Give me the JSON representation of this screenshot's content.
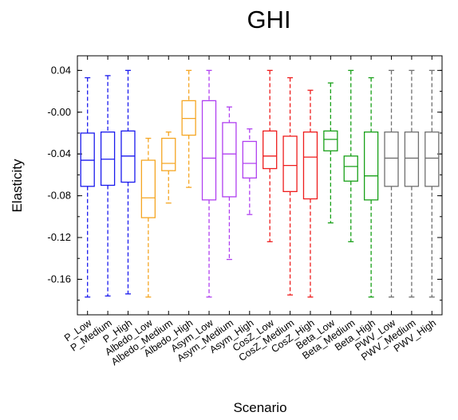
{
  "chart_data": {
    "type": "box",
    "title": "GHI",
    "xlabel": "Scenario",
    "ylabel": "Elasticity",
    "ylim": [
      -0.194,
      0.054
    ],
    "yticks": [
      0.04,
      0.0,
      -0.04,
      -0.08,
      -0.12,
      -0.16
    ],
    "ytick_labels": [
      "0.04",
      "-0.00",
      "-0.04",
      "-0.08",
      "-0.12",
      "-0.16"
    ],
    "grid": false,
    "categories": [
      "P_Low",
      "P_Medium",
      "P_High",
      "Albedo_Low",
      "Albedo_Medium",
      "Albedo_High",
      "Asym_Low",
      "Asym_Medium",
      "Asym_High",
      "CosZ_Low",
      "CosZ_Medium",
      "CosZ_High",
      "Beta_Low",
      "Beta_Medium",
      "Beta_High",
      "PWV_Low",
      "PWV_Medium",
      "PWV_High"
    ],
    "colors": [
      "#1a1aee",
      "#1a1aee",
      "#1a1aee",
      "#f5a623",
      "#f5a623",
      "#f5a623",
      "#b040f0",
      "#b040f0",
      "#b040f0",
      "#ee1c1c",
      "#ee1c1c",
      "#ee1c1c",
      "#18a018",
      "#18a018",
      "#18a018",
      "#707070",
      "#707070",
      "#707070"
    ],
    "boxes": [
      {
        "min": -0.177,
        "q1": -0.071,
        "median": -0.046,
        "q3": -0.02,
        "max": 0.033
      },
      {
        "min": -0.176,
        "q1": -0.07,
        "median": -0.045,
        "q3": -0.019,
        "max": 0.035
      },
      {
        "min": -0.174,
        "q1": -0.067,
        "median": -0.042,
        "q3": -0.018,
        "max": 0.04
      },
      {
        "min": -0.177,
        "q1": -0.101,
        "median": -0.082,
        "q3": -0.046,
        "max": -0.025
      },
      {
        "min": -0.087,
        "q1": -0.056,
        "median": -0.049,
        "q3": -0.025,
        "max": -0.019
      },
      {
        "min": -0.072,
        "q1": -0.022,
        "median": -0.006,
        "q3": 0.011,
        "max": 0.04
      },
      {
        "min": -0.177,
        "q1": -0.084,
        "median": -0.044,
        "q3": 0.011,
        "max": 0.04
      },
      {
        "min": -0.141,
        "q1": -0.081,
        "median": -0.04,
        "q3": -0.01,
        "max": 0.005
      },
      {
        "min": -0.098,
        "q1": -0.063,
        "median": -0.049,
        "q3": -0.028,
        "max": -0.016
      },
      {
        "min": -0.124,
        "q1": -0.054,
        "median": -0.042,
        "q3": -0.018,
        "max": 0.04
      },
      {
        "min": -0.175,
        "q1": -0.076,
        "median": -0.051,
        "q3": -0.023,
        "max": 0.033
      },
      {
        "min": -0.177,
        "q1": -0.083,
        "median": -0.043,
        "q3": -0.019,
        "max": 0.021
      },
      {
        "min": -0.106,
        "q1": -0.037,
        "median": -0.026,
        "q3": -0.018,
        "max": 0.028
      },
      {
        "min": -0.124,
        "q1": -0.066,
        "median": -0.052,
        "q3": -0.042,
        "max": 0.04
      },
      {
        "min": -0.177,
        "q1": -0.084,
        "median": -0.061,
        "q3": -0.019,
        "max": 0.033
      },
      {
        "min": -0.177,
        "q1": -0.071,
        "median": -0.044,
        "q3": -0.019,
        "max": 0.04
      },
      {
        "min": -0.177,
        "q1": -0.071,
        "median": -0.044,
        "q3": -0.019,
        "max": 0.04
      },
      {
        "min": -0.177,
        "q1": -0.071,
        "median": -0.044,
        "q3": -0.019,
        "max": 0.04
      }
    ]
  }
}
